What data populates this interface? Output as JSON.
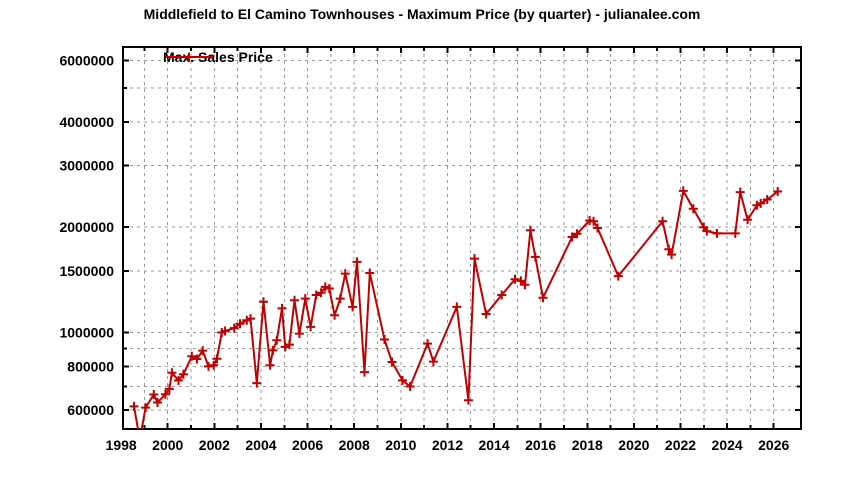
{
  "colors": {
    "background": "#ffffff",
    "plot_border": "#000000",
    "grid": "#9a9a9a",
    "text": "#000000",
    "series": "#c00000"
  },
  "chart_data": {
    "type": "line",
    "title": "Middlefield to El Camino Townhouses - Maximum Price (by quarter) - julianalee.com",
    "xlabel": "",
    "ylabel": "",
    "grid": true,
    "legend_position": "top-left-inside",
    "x_axis": {
      "range": [
        1998.08,
        2027.17
      ],
      "labeled_ticks": [
        1998,
        2000,
        2002,
        2004,
        2006,
        2008,
        2010,
        2012,
        2014,
        2016,
        2018,
        2020,
        2022,
        2024,
        2026
      ],
      "minor_tick_step_years": 1
    },
    "y_axis": {
      "scale": "log10",
      "range": [
        530000,
        6550000
      ],
      "labeled_ticks": [
        600000,
        800000,
        1000000,
        1500000,
        2000000,
        3000000,
        4000000,
        6000000
      ],
      "unlabeled_gridline_values": [
        700000,
        900000,
        5000000
      ],
      "tick_label_format": "plain_integer"
    },
    "series": [
      {
        "name": "Max. Sales Price",
        "color": "#c00000",
        "marker": "plus",
        "line_width": 2,
        "x_unit": "decimal_year_quarterly",
        "y_unit": "USD",
        "points": [
          [
            1998.55,
            615000
          ],
          [
            1998.8,
            495000
          ],
          [
            1999.05,
            610000
          ],
          [
            1999.4,
            665000
          ],
          [
            1999.56,
            631000
          ],
          [
            1999.9,
            666000
          ],
          [
            2000.07,
            690000
          ],
          [
            2000.18,
            767000
          ],
          [
            2000.46,
            730000
          ],
          [
            2000.67,
            760000
          ],
          [
            2001.03,
            855000
          ],
          [
            2001.25,
            840000
          ],
          [
            2001.5,
            888000
          ],
          [
            2001.75,
            800000
          ],
          [
            2001.97,
            806000
          ],
          [
            2002.11,
            842000
          ],
          [
            2002.32,
            1000000
          ],
          [
            2002.46,
            1010000
          ],
          [
            2002.85,
            1030000
          ],
          [
            2003.1,
            1060000
          ],
          [
            2003.39,
            1084000
          ],
          [
            2003.55,
            1096000
          ],
          [
            2003.82,
            717000
          ],
          [
            2004.11,
            1225000
          ],
          [
            2004.39,
            806000
          ],
          [
            2004.51,
            889000
          ],
          [
            2004.68,
            951000
          ],
          [
            2004.9,
            1172000
          ],
          [
            2005.04,
            909000
          ],
          [
            2005.22,
            924000
          ],
          [
            2005.44,
            1237000
          ],
          [
            2005.65,
            993000
          ],
          [
            2005.9,
            1250000
          ],
          [
            2006.13,
            1038000
          ],
          [
            2006.37,
            1280000
          ],
          [
            2006.58,
            1300000
          ],
          [
            2006.76,
            1350000
          ],
          [
            2006.93,
            1336000
          ],
          [
            2007.16,
            1120000
          ],
          [
            2007.4,
            1250000
          ],
          [
            2007.62,
            1474000
          ],
          [
            2007.93,
            1184000
          ],
          [
            2008.12,
            1592000
          ],
          [
            2008.44,
            771000
          ],
          [
            2008.67,
            1480000
          ],
          [
            2009.3,
            955000
          ],
          [
            2009.62,
            824000
          ],
          [
            2010.07,
            730000
          ],
          [
            2010.4,
            701000
          ],
          [
            2011.15,
            930000
          ],
          [
            2011.4,
            826000
          ],
          [
            2012.4,
            1184000
          ],
          [
            2012.9,
            640000
          ],
          [
            2013.16,
            1627000
          ],
          [
            2013.66,
            1130000
          ],
          [
            2014.33,
            1280000
          ],
          [
            2014.9,
            1420000
          ],
          [
            2015.15,
            1405000
          ],
          [
            2015.33,
            1370000
          ],
          [
            2015.56,
            1960000
          ],
          [
            2015.77,
            1645000
          ],
          [
            2016.1,
            1257000
          ],
          [
            2017.35,
            1875000
          ],
          [
            2017.56,
            1916000
          ],
          [
            2018.1,
            2090000
          ],
          [
            2018.27,
            2080000
          ],
          [
            2018.44,
            1990000
          ],
          [
            2019.33,
            1450000
          ],
          [
            2021.23,
            2080000
          ],
          [
            2021.5,
            1730000
          ],
          [
            2021.62,
            1670000
          ],
          [
            2022.12,
            2540000
          ],
          [
            2022.55,
            2260000
          ],
          [
            2023.0,
            2000000
          ],
          [
            2023.13,
            1950000
          ],
          [
            2023.56,
            1920000
          ],
          [
            2024.35,
            1920000
          ],
          [
            2024.56,
            2520000
          ],
          [
            2024.88,
            2100000
          ],
          [
            2025.28,
            2310000
          ],
          [
            2025.44,
            2340000
          ],
          [
            2025.72,
            2400000
          ],
          [
            2026.17,
            2530000
          ]
        ]
      }
    ]
  }
}
